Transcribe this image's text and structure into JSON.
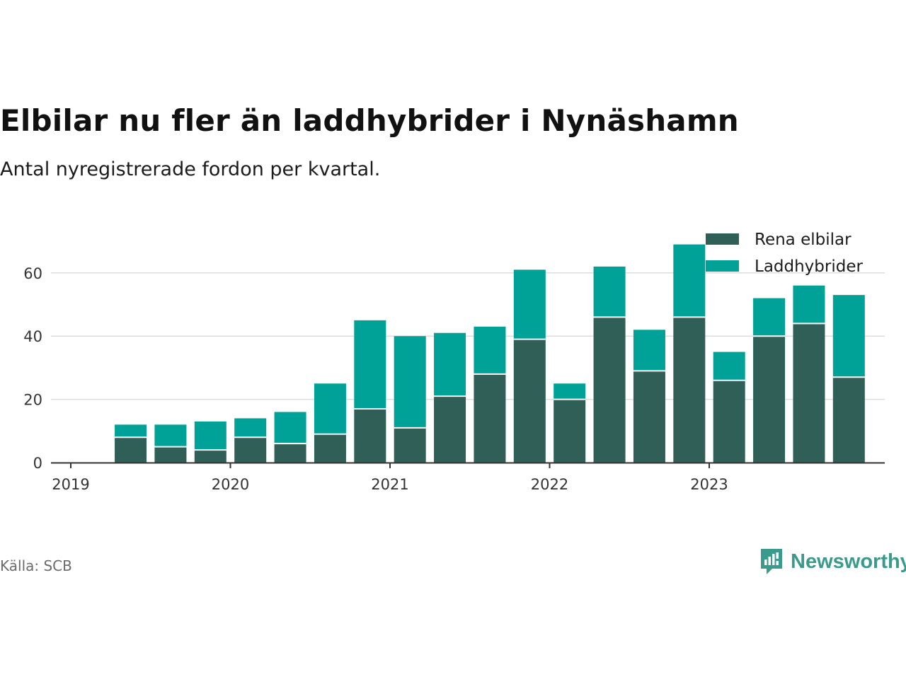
{
  "header": {
    "title": "Elbilar nu fler än laddhybrider i Nynäshamn",
    "subtitle": "Antal nyregistrerade fordon per kvartal."
  },
  "footer": {
    "source": "Källa: SCB",
    "brand": "Newsworthy"
  },
  "colors": {
    "elbilar": "#2f5f57",
    "laddhybrider": "#00a297",
    "grid": "#dddddd",
    "axis": "#333333",
    "brand": "#3a9a8c"
  },
  "chart_data": {
    "type": "bar",
    "stacked": true,
    "categories": [
      "2019 Q2",
      "2019 Q3",
      "2019 Q4",
      "2020 Q1",
      "2020 Q2",
      "2020 Q3",
      "2020 Q4",
      "2021 Q1",
      "2021 Q2",
      "2021 Q3",
      "2021 Q4",
      "2022 Q1",
      "2022 Q2",
      "2022 Q3",
      "2022 Q4",
      "2023 Q1",
      "2023 Q2",
      "2023 Q3",
      "2023 Q4"
    ],
    "series": [
      {
        "name": "Rena elbilar",
        "color": "#2f5f57",
        "values": [
          8,
          5,
          4,
          8,
          6,
          9,
          17,
          11,
          21,
          28,
          39,
          20,
          46,
          29,
          46,
          26,
          40,
          44,
          27
        ]
      },
      {
        "name": "Laddhybrider",
        "color": "#00a297",
        "values": [
          4,
          7,
          9,
          6,
          10,
          16,
          28,
          29,
          20,
          15,
          22,
          5,
          16,
          13,
          23,
          9,
          12,
          12,
          26
        ]
      }
    ],
    "x_tick_labels": [
      "2019",
      "2020",
      "2021",
      "2022",
      "2023"
    ],
    "y_ticks": [
      0,
      20,
      40,
      60
    ],
    "ylim": [
      0,
      72
    ],
    "xlabel": "",
    "ylabel": "",
    "grid": true,
    "legend_position": "top-right"
  }
}
